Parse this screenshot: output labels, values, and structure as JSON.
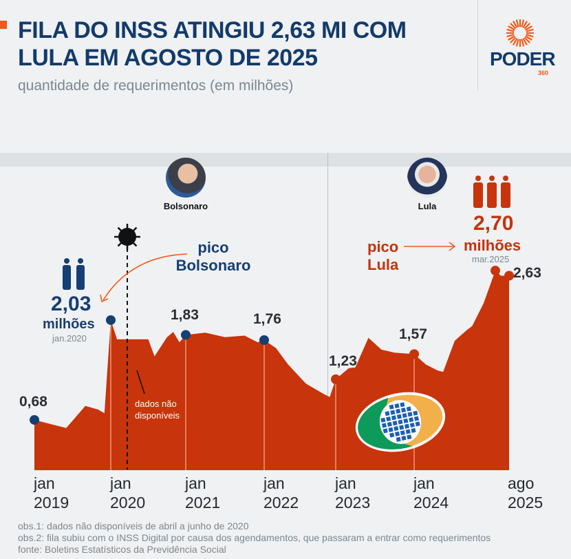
{
  "header": {
    "title_line1": "FILA DO INSS ATINGIU 2,63 MI COM",
    "title_line2": "LULA EM AGOSTO DE 2025",
    "subtitle": "quantidade de requerimentos (em milhões)"
  },
  "logo": {
    "name": "PODER",
    "sub": "360"
  },
  "eras": [
    {
      "name": "Bolsonaro"
    },
    {
      "name": "Lula"
    }
  ],
  "annotations": {
    "bolsonaro_peak": {
      "label_line1": "pico",
      "label_line2": "Bolsonaro",
      "value": "2,03",
      "unit": "milhões",
      "date": "jan.2020"
    },
    "lula_peak": {
      "label_line1": "pico",
      "label_line2": "Lula",
      "value": "2,70",
      "unit": "milhões",
      "date": "mar.2025"
    },
    "missing_line1": "dados não",
    "missing_line2": "disponíveis"
  },
  "chart_data": {
    "type": "area",
    "title": "FILA DO INSS ATINGIU 2,63 MI COM LULA EM AGOSTO DE 2025",
    "ylabel": "quantidade de requerimentos (em milhões)",
    "ylim": [
      0,
      2.9
    ],
    "x_unit": "months since jan 2019",
    "points": [
      [
        0,
        0.68
      ],
      [
        5,
        0.57
      ],
      [
        8,
        0.87
      ],
      [
        10,
        0.82
      ],
      [
        11,
        0.77
      ],
      [
        12,
        2.03
      ],
      [
        13,
        1.77
      ],
      [
        14,
        1.77
      ],
      [
        18,
        1.77
      ],
      [
        19,
        1.54
      ],
      [
        21,
        1.8
      ],
      [
        22,
        1.87
      ],
      [
        23,
        1.73
      ],
      [
        24,
        1.83
      ],
      [
        27,
        1.86
      ],
      [
        30,
        1.8
      ],
      [
        33,
        1.82
      ],
      [
        35,
        1.73
      ],
      [
        36,
        1.76
      ],
      [
        38,
        1.65
      ],
      [
        40,
        1.43
      ],
      [
        43,
        1.17
      ],
      [
        46,
        1.03
      ],
      [
        47,
        0.99
      ],
      [
        48,
        1.23
      ],
      [
        50,
        1.38
      ],
      [
        51,
        1.39
      ],
      [
        53,
        1.79
      ],
      [
        55,
        1.63
      ],
      [
        57,
        1.59
      ],
      [
        60,
        1.57
      ],
      [
        62,
        1.43
      ],
      [
        64,
        1.35
      ],
      [
        65,
        1.33
      ],
      [
        67,
        1.75
      ],
      [
        69,
        1.89
      ],
      [
        70,
        1.95
      ],
      [
        72,
        2.26
      ],
      [
        74,
        2.7
      ],
      [
        76,
        2.63
      ],
      [
        79,
        2.63
      ]
    ],
    "labeled_points": [
      {
        "month": 0,
        "value": 0.68,
        "label": "0,68"
      },
      {
        "month": 12,
        "value": 2.03,
        "label": ""
      },
      {
        "month": 24,
        "value": 1.83,
        "label": "1,83"
      },
      {
        "month": 36,
        "value": 1.76,
        "label": "1,76"
      },
      {
        "month": 48,
        "value": 1.23,
        "label": "1,23"
      },
      {
        "month": 60,
        "value": 1.57,
        "label": "1,57"
      },
      {
        "month": 74,
        "value": 2.7,
        "label": ""
      },
      {
        "month": 79,
        "value": 2.63,
        "label": "2,63"
      }
    ],
    "x_ticks": [
      {
        "month": 0,
        "line1": "jan",
        "line2": "2019"
      },
      {
        "month": 12,
        "line1": "jan",
        "line2": "2020"
      },
      {
        "month": 24,
        "line1": "jan",
        "line2": "2021"
      },
      {
        "month": 36,
        "line1": "jan",
        "line2": "2022"
      },
      {
        "month": 48,
        "line1": "jan",
        "line2": "2023"
      },
      {
        "month": 60,
        "line1": "jan",
        "line2": "2024"
      },
      {
        "month": 79,
        "line1": "ago",
        "line2": "2025"
      }
    ],
    "colors": {
      "area": "#c8340b",
      "dot_bolsonaro": "#163f73",
      "dot_lula": "#c8340b"
    }
  },
  "footer": {
    "obs1": "obs.1: dados não disponíveis de abril a junho de 2020",
    "obs2": "obs.2: fila subiu com o INSS Digital por causa dos agendamentos, que passaram a entrar como requerimentos",
    "source": "fonte: Boletins Estatísticos da Previdência Social"
  }
}
